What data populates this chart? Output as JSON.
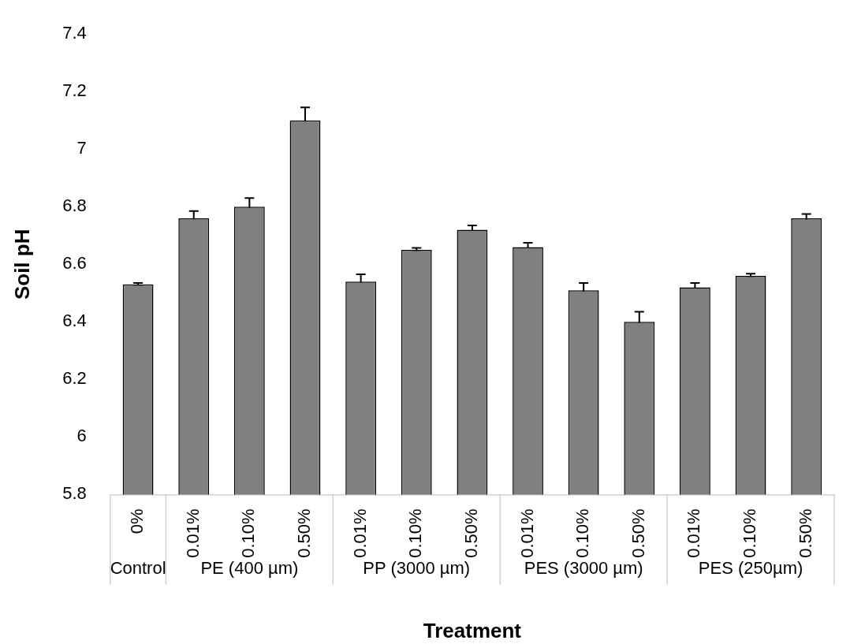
{
  "chart_data": {
    "type": "bar",
    "xlabel": "Treatment",
    "ylabel": "Soil pH",
    "categories": [
      "0%",
      "0.01%",
      "0.10%",
      "0.50%",
      "0.01%",
      "0.10%",
      "0.50%",
      "0.01%",
      "0.10%",
      "0.50%",
      "0.01%",
      "0.10%",
      "0.50%"
    ],
    "values": [
      6.53,
      6.76,
      6.8,
      7.1,
      6.54,
      6.65,
      6.72,
      6.66,
      6.51,
      6.4,
      6.52,
      6.56,
      6.76
    ],
    "errors": [
      0.005,
      0.025,
      0.03,
      0.045,
      0.025,
      0.007,
      0.015,
      0.015,
      0.025,
      0.035,
      0.015,
      0.007,
      0.015
    ],
    "color": "#808080",
    "ylim": [
      5.8,
      7.4
    ],
    "yticks": [
      5.8,
      6,
      6.2,
      6.4,
      6.6,
      6.8,
      7,
      7.2,
      7.4
    ],
    "annotations": [
      "Control",
      "PE (400 µm)",
      "PP (3000 µm)",
      "PES (3000 µm)",
      "PES (250µm)"
    ],
    "grid": false,
    "legend": false
  }
}
